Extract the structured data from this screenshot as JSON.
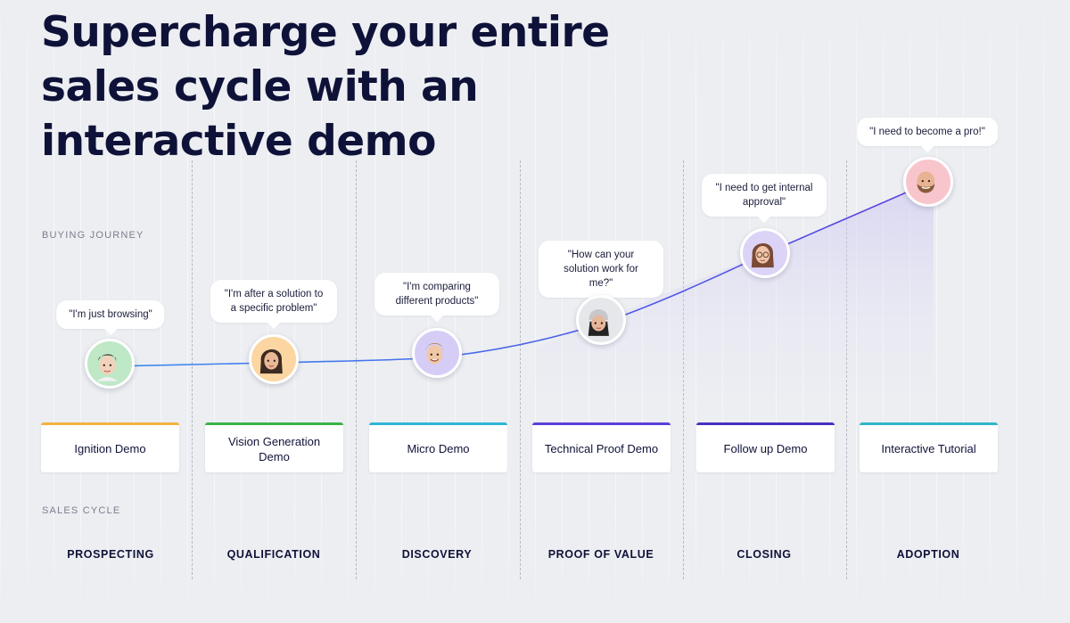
{
  "headline": {
    "line1": "Supercharge your entire",
    "line2": "sales cycle with an",
    "line3": "interactive demo"
  },
  "labels": {
    "buying_journey": "BUYING JOURNEY",
    "sales_cycle": "SALES CYCLE"
  },
  "columns": [
    {
      "stage": "PROSPECTING",
      "demo": "Ignition Demo",
      "quote": "\"I'm just browsing\"",
      "accent": "#f2b23e",
      "avatar_bg": "#bfe8c6",
      "avatar_icon": "person-avatar-icon"
    },
    {
      "stage": "QUALIFICATION",
      "demo": "Vision Generation Demo",
      "quote": "\"I'm after a solution to a specific problem\"",
      "accent": "#3bb34a",
      "avatar_bg": "#fbd6a2",
      "avatar_icon": "person-avatar-icon"
    },
    {
      "stage": "DISCOVERY",
      "demo": "Micro Demo",
      "quote": "\"I'm comparing different products\"",
      "accent": "#2fb5d8",
      "avatar_bg": "#d6cdf7",
      "avatar_icon": "person-avatar-icon"
    },
    {
      "stage": "PROOF OF VALUE",
      "demo": "Technical Proof Demo",
      "quote": "\"How can your solution work for me?\"",
      "accent": "#5b3fd9",
      "avatar_bg": "#e6e7ea",
      "avatar_icon": "person-avatar-icon"
    },
    {
      "stage": "CLOSING",
      "demo": "Follow up Demo",
      "quote": "\"I need to get internal approval\"",
      "accent": "#4a2fc2",
      "avatar_bg": "#dcd4f7",
      "avatar_icon": "person-avatar-icon"
    },
    {
      "stage": "ADOPTION",
      "demo": "Interactive Tutorial",
      "quote": "\"I need to become a pro!\"",
      "accent": "#2fb5c9",
      "avatar_bg": "#f9c5cc",
      "avatar_icon": "person-avatar-icon"
    }
  ],
  "colors": {
    "curve_start": "#3b8cf0",
    "curve_end": "#5b3fe0",
    "headline": "#0f1238"
  }
}
